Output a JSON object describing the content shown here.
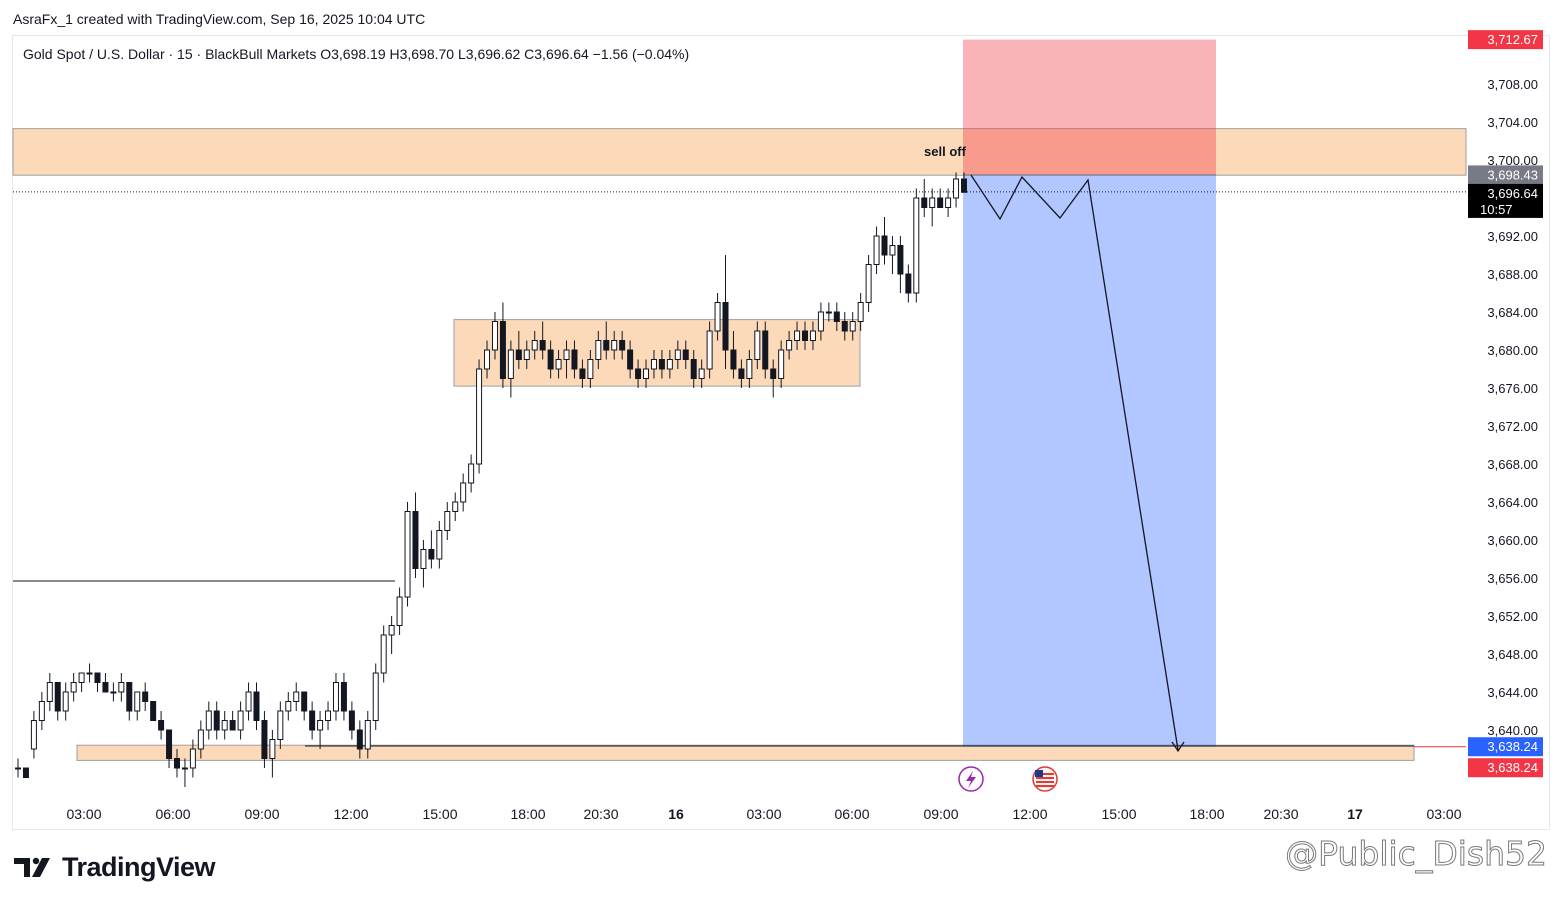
{
  "header": {
    "attribution": "AsraFx_1 created with TradingView.com, Sep 16, 2025 10:04 UTC",
    "legend": "Gold Spot / U.S. Dollar · 15 · BlackBull Markets  O3,698.19  H3,698.70  L3,696.62  C3,696.64  −1.56 (−0.04%)"
  },
  "chart_data": {
    "type": "candlestick",
    "symbol": "Gold Spot / U.S. Dollar",
    "interval": "15",
    "broker": "BlackBull Markets",
    "ohlc": {
      "open": 3698.19,
      "high": 3698.7,
      "low": 3696.62,
      "close": 3696.64,
      "change": -1.56,
      "change_pct": -0.04
    },
    "y_axis": {
      "ticks": [
        "3,708.00",
        "3,704.00",
        "3,700.00",
        "3,692.00",
        "3,688.00",
        "3,684.00",
        "3,680.00",
        "3,676.00",
        "3,672.00",
        "3,668.00",
        "3,664.00",
        "3,660.00",
        "3,656.00",
        "3,652.00",
        "3,648.00",
        "3,644.00",
        "3,640.00"
      ],
      "range": [
        3635,
        3714
      ]
    },
    "x_axis": {
      "ticks": [
        "03:00",
        "06:00",
        "09:00",
        "12:00",
        "15:00",
        "18:00",
        "20:30",
        "16",
        "03:00",
        "06:00",
        "09:00",
        "12:00",
        "15:00",
        "18:00",
        "20:30",
        "17",
        "03:00"
      ],
      "bold_ticks": [
        "16",
        "17"
      ]
    },
    "price_labels": [
      {
        "value": 3712.67,
        "text": "3,712.67",
        "color": "#f23645"
      },
      {
        "value": 3698.43,
        "text": "3,698.43",
        "color": "#787b86"
      },
      {
        "value": 3696.64,
        "text": "3,696.64",
        "sub": "10:57",
        "color": "#000000"
      },
      {
        "value": 3638.24,
        "text": "3,638.24",
        "color": "#2962ff"
      },
      {
        "value": 3638.24,
        "text": "3,638.24",
        "color": "#f23645"
      }
    ],
    "zones": [
      {
        "name": "sell-zone",
        "from": 3698.4,
        "to": 3703.3,
        "color": "#fcd9b8"
      },
      {
        "name": "range-box",
        "from": 3676.2,
        "to": 3683.2,
        "color": "#fcd9b8"
      },
      {
        "name": "demand-zone",
        "from": 3636.8,
        "to": 3638.4,
        "color": "#fcd9b8"
      }
    ],
    "position": {
      "type": "short",
      "stop": 3712.67,
      "entry": 3698.43,
      "target": 3638.24
    },
    "annotations": [
      {
        "text": "sell off"
      }
    ],
    "candles": [
      [
        3636,
        3637,
        3635,
        3636
      ],
      [
        3636,
        3636,
        3635,
        3635
      ],
      [
        3638,
        3642,
        3637,
        3641
      ],
      [
        3641,
        3644,
        3640,
        3643
      ],
      [
        3643,
        3646,
        3642,
        3645
      ],
      [
        3645,
        3645,
        3641,
        3642
      ],
      [
        3642,
        3645,
        3641,
        3644
      ],
      [
        3644,
        3646,
        3643,
        3645
      ],
      [
        3645,
        3646,
        3644,
        3646
      ],
      [
        3646,
        3647,
        3645,
        3646
      ],
      [
        3646,
        3646,
        3644,
        3645
      ],
      [
        3645,
        3646,
        3644,
        3644
      ],
      [
        3644,
        3645,
        3643,
        3644
      ],
      [
        3644,
        3646,
        3643,
        3645
      ],
      [
        3645,
        3645,
        3641,
        3642
      ],
      [
        3642,
        3644,
        3641,
        3644
      ],
      [
        3644,
        3645,
        3642,
        3643
      ],
      [
        3643,
        3643,
        3641,
        3641
      ],
      [
        3641,
        3642,
        3639,
        3640
      ],
      [
        3640,
        3640,
        3636,
        3637
      ],
      [
        3637,
        3638,
        3635,
        3636
      ],
      [
        3636,
        3637,
        3634,
        3636
      ],
      [
        3636,
        3639,
        3635,
        3638
      ],
      [
        3638,
        3641,
        3637,
        3640
      ],
      [
        3640,
        3643,
        3639,
        3642
      ],
      [
        3642,
        3643,
        3639,
        3640
      ],
      [
        3640,
        3642,
        3639,
        3641
      ],
      [
        3641,
        3642,
        3640,
        3640
      ],
      [
        3640,
        3643,
        3639,
        3642
      ],
      [
        3642,
        3645,
        3641,
        3644
      ],
      [
        3644,
        3645,
        3640,
        3641
      ],
      [
        3641,
        3642,
        3636,
        3637
      ],
      [
        3637,
        3640,
        3635,
        3639
      ],
      [
        3639,
        3643,
        3638,
        3642
      ],
      [
        3642,
        3644,
        3641,
        3643
      ],
      [
        3643,
        3645,
        3642,
        3644
      ],
      [
        3644,
        3644,
        3641,
        3642
      ],
      [
        3642,
        3643,
        3639,
        3640
      ],
      [
        3640,
        3642,
        3638,
        3641
      ],
      [
        3641,
        3643,
        3640,
        3642
      ],
      [
        3642,
        3646,
        3641,
        3645
      ],
      [
        3645,
        3646,
        3641,
        3642
      ],
      [
        3642,
        3643,
        3639,
        3640
      ],
      [
        3640,
        3641,
        3637,
        3638
      ],
      [
        3638,
        3642,
        3637,
        3641
      ],
      [
        3641,
        3647,
        3640,
        3646
      ],
      [
        3646,
        3651,
        3645,
        3650
      ],
      [
        3650,
        3652,
        3648,
        3651
      ],
      [
        3651,
        3655,
        3650,
        3654
      ],
      [
        3654,
        3664,
        3653,
        3663
      ],
      [
        3663,
        3665,
        3656,
        3657
      ],
      [
        3657,
        3660,
        3655,
        3659
      ],
      [
        3659,
        3661,
        3657,
        3658
      ],
      [
        3658,
        3662,
        3657,
        3661
      ],
      [
        3661,
        3664,
        3660,
        3663
      ],
      [
        3663,
        3665,
        3662,
        3664
      ],
      [
        3664,
        3667,
        3663,
        3666
      ],
      [
        3666,
        3669,
        3665,
        3668
      ],
      [
        3668,
        3679,
        3667,
        3678
      ],
      [
        3678,
        3681,
        3677,
        3680
      ],
      [
        3680,
        3684,
        3679,
        3683
      ],
      [
        3683,
        3685,
        3676,
        3677
      ],
      [
        3677,
        3681,
        3675,
        3680
      ],
      [
        3680,
        3682,
        3678,
        3679
      ],
      [
        3679,
        3681,
        3678,
        3680
      ],
      [
        3680,
        3682,
        3679,
        3681
      ],
      [
        3681,
        3683,
        3679,
        3680
      ],
      [
        3680,
        3681,
        3677,
        3678
      ],
      [
        3678,
        3680,
        3677,
        3679
      ],
      [
        3679,
        3681,
        3677,
        3680
      ],
      [
        3680,
        3681,
        3677,
        3678
      ],
      [
        3678,
        3679,
        3676,
        3677
      ],
      [
        3677,
        3680,
        3676,
        3679
      ],
      [
        3679,
        3682,
        3678,
        3681
      ],
      [
        3681,
        3683,
        3679,
        3680
      ],
      [
        3680,
        3682,
        3679,
        3681
      ],
      [
        3681,
        3682,
        3679,
        3680
      ],
      [
        3680,
        3681,
        3677,
        3678
      ],
      [
        3678,
        3679,
        3676,
        3677
      ],
      [
        3677,
        3679,
        3676,
        3678
      ],
      [
        3678,
        3680,
        3677,
        3679
      ],
      [
        3679,
        3680,
        3677,
        3678
      ],
      [
        3678,
        3680,
        3677,
        3679
      ],
      [
        3679,
        3681,
        3678,
        3680
      ],
      [
        3680,
        3681,
        3678,
        3679
      ],
      [
        3679,
        3680,
        3676,
        3677
      ],
      [
        3677,
        3679,
        3676,
        3678
      ],
      [
        3678,
        3683,
        3677,
        3682
      ],
      [
        3682,
        3686,
        3681,
        3685
      ],
      [
        3685,
        3690,
        3678,
        3680
      ],
      [
        3680,
        3682,
        3677,
        3678
      ],
      [
        3678,
        3679,
        3676,
        3677
      ],
      [
        3677,
        3680,
        3676,
        3679
      ],
      [
        3679,
        3683,
        3678,
        3682
      ],
      [
        3682,
        3683,
        3677,
        3678
      ],
      [
        3678,
        3679,
        3675,
        3677
      ],
      [
        3677,
        3681,
        3676,
        3680
      ],
      [
        3680,
        3682,
        3679,
        3681
      ],
      [
        3681,
        3683,
        3680,
        3682
      ],
      [
        3682,
        3683,
        3680,
        3681
      ],
      [
        3681,
        3683,
        3680,
        3682
      ],
      [
        3682,
        3685,
        3681,
        3684
      ],
      [
        3684,
        3685,
        3683,
        3684
      ],
      [
        3684,
        3685,
        3682,
        3683
      ],
      [
        3683,
        3684,
        3681,
        3682
      ],
      [
        3682,
        3684,
        3681,
        3683
      ],
      [
        3683,
        3686,
        3682,
        3685
      ],
      [
        3685,
        3690,
        3684,
        3689
      ],
      [
        3689,
        3693,
        3688,
        3692
      ],
      [
        3692,
        3694,
        3689,
        3690
      ],
      [
        3690,
        3692,
        3688,
        3691
      ],
      [
        3691,
        3692,
        3686,
        3688
      ],
      [
        3688,
        3689,
        3685,
        3686
      ],
      [
        3686,
        3697,
        3685,
        3696
      ],
      [
        3696,
        3698,
        3694,
        3695
      ],
      [
        3695,
        3697,
        3693,
        3696
      ],
      [
        3696,
        3697,
        3695,
        3695
      ],
      [
        3695,
        3697,
        3694,
        3696
      ],
      [
        3696,
        3698.7,
        3695,
        3698
      ],
      [
        3698,
        3698.7,
        3696.6,
        3696.6
      ]
    ]
  },
  "watermark": "@Public_Dish52",
  "logo": "TradingView",
  "icons": [
    "lightning-icon",
    "us-flag-icon",
    "tradingview-logo-icon"
  ]
}
